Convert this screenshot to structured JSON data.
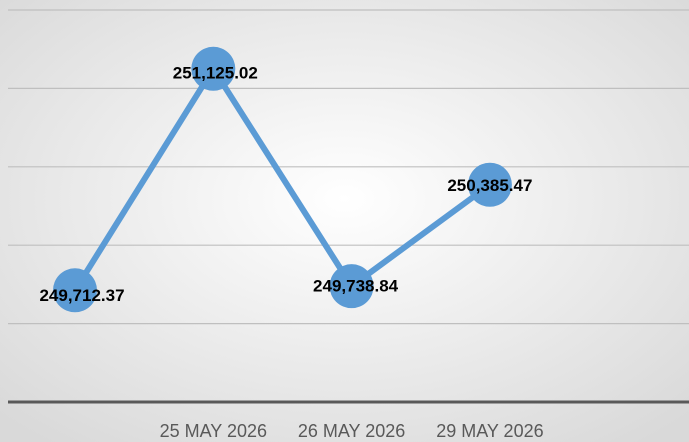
{
  "chart_data": {
    "type": "line",
    "categories": [
      null,
      "25 MAY 2026",
      "26 MAY 2026",
      "29 MAY 2026"
    ],
    "series": [
      {
        "color": "#5b9bd5",
        "values": [
          249712.37,
          251125.02,
          249738.84,
          250385.47
        ],
        "value_labels": [
          "249,712.37",
          "251,125.02",
          "249,738.84",
          "250,385.47"
        ]
      }
    ],
    "ylim": [
      249000,
      251500
    ],
    "yticks": [
      249000,
      249500,
      250000,
      250500,
      251000,
      251500
    ],
    "grid": true
  }
}
